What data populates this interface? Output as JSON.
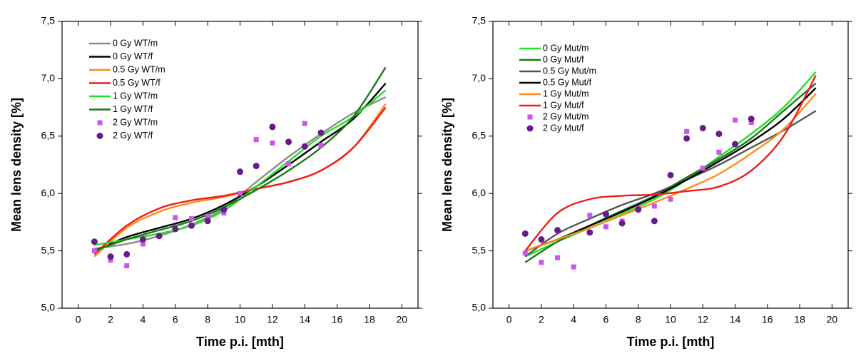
{
  "chart_data": [
    {
      "type": "line",
      "xlabel": "Time p.i. [mth]",
      "ylabel": "Mean lens density [%]",
      "xlim": [
        -1,
        21
      ],
      "xticks": [
        0,
        2,
        4,
        6,
        8,
        10,
        12,
        14,
        16,
        18,
        20
      ],
      "ylim": [
        5,
        7.5
      ],
      "yticks": [
        {
          "value": 5,
          "label": "5,0"
        },
        {
          "value": 5.5,
          "label": "5,5"
        },
        {
          "value": 6,
          "label": "6,0"
        },
        {
          "value": 6.5,
          "label": "6,5"
        },
        {
          "value": 7,
          "label": "7,0"
        },
        {
          "value": 7.5,
          "label": "7,5"
        }
      ],
      "series": [
        {
          "name": "0 Gy WT/m",
          "color": "#8c8c8c",
          "marker": "line",
          "x": [
            1,
            3,
            5,
            7,
            9,
            11,
            13,
            15,
            17,
            19
          ],
          "values": [
            5.52,
            5.56,
            5.63,
            5.73,
            5.87,
            6.1,
            6.32,
            6.52,
            6.7,
            6.84
          ]
        },
        {
          "name": "0 Gy WT/f",
          "color": "#000000",
          "marker": "line",
          "x": [
            1,
            3,
            5,
            7,
            9,
            11,
            13,
            15,
            17,
            19
          ],
          "values": [
            5.5,
            5.62,
            5.7,
            5.78,
            5.9,
            6.06,
            6.25,
            6.45,
            6.65,
            6.96
          ]
        },
        {
          "name": "0.5 Gy WT/m",
          "color": "#ff8c1a",
          "marker": "line",
          "x": [
            1,
            3,
            5,
            7,
            9,
            11,
            13,
            15,
            17,
            19
          ],
          "values": [
            5.45,
            5.7,
            5.84,
            5.92,
            5.97,
            6.04,
            6.1,
            6.2,
            6.4,
            6.78
          ]
        },
        {
          "name": "0.5 Gy WT/f",
          "color": "#ee1c1c",
          "marker": "line",
          "x": [
            1,
            3,
            5,
            7,
            9,
            11,
            13,
            15,
            17,
            19
          ],
          "values": [
            5.47,
            5.72,
            5.87,
            5.94,
            5.98,
            6.04,
            6.1,
            6.2,
            6.4,
            6.75
          ]
        },
        {
          "name": "1 Gy WT/m",
          "color": "#22e022",
          "marker": "line",
          "x": [
            1,
            3,
            5,
            7,
            9,
            11,
            13,
            15,
            17,
            19
          ],
          "values": [
            5.55,
            5.6,
            5.65,
            5.72,
            5.85,
            6.06,
            6.28,
            6.5,
            6.67,
            6.9
          ]
        },
        {
          "name": "1 Gy WT/f",
          "color": "#1a7a1a",
          "marker": "line",
          "x": [
            1,
            3,
            5,
            7,
            9,
            11,
            13,
            15,
            17,
            19
          ],
          "values": [
            5.5,
            5.6,
            5.68,
            5.76,
            5.88,
            6.03,
            6.2,
            6.4,
            6.67,
            7.1
          ]
        },
        {
          "name": "2 Gy WT/m",
          "color": "#cc55ee",
          "marker": "square",
          "x": [
            1,
            2,
            3,
            4,
            5,
            6,
            7,
            8,
            9,
            10,
            11,
            12,
            13,
            14,
            15
          ],
          "values": [
            5.5,
            5.42,
            5.37,
            5.56,
            5.63,
            5.79,
            5.78,
            5.8,
            5.83,
            6.0,
            6.47,
            6.44,
            6.26,
            6.61,
            6.42
          ]
        },
        {
          "name": "2 Gy WT/f",
          "color": "#6a1a8a",
          "marker": "circle",
          "x": [
            1,
            2,
            3,
            4,
            5,
            6,
            7,
            8,
            9,
            10,
            11,
            12,
            13,
            14,
            15
          ],
          "values": [
            5.58,
            5.45,
            5.47,
            5.6,
            5.63,
            5.69,
            5.72,
            5.76,
            5.86,
            6.19,
            6.24,
            6.58,
            6.45,
            6.41,
            6.53
          ]
        }
      ]
    },
    {
      "type": "line",
      "xlabel": "Time p.i. [mth]",
      "ylabel": "Mean lens density [%]",
      "xlim": [
        -1,
        21
      ],
      "xticks": [
        0,
        2,
        4,
        6,
        8,
        10,
        12,
        14,
        16,
        18,
        20
      ],
      "ylim": [
        5,
        7.5
      ],
      "yticks": [
        {
          "value": 5,
          "label": "5,0"
        },
        {
          "value": 5.5,
          "label": "5,5"
        },
        {
          "value": 6,
          "label": "6,0"
        },
        {
          "value": 6.5,
          "label": "6,5"
        },
        {
          "value": 7,
          "label": "7,0"
        },
        {
          "value": 7.5,
          "label": "7,5"
        }
      ],
      "series": [
        {
          "name": "0 Gy Mut/m",
          "color": "#22e022",
          "marker": "line",
          "x": [
            1,
            3,
            5,
            7,
            9,
            11,
            13,
            15,
            17,
            19
          ],
          "values": [
            5.45,
            5.58,
            5.7,
            5.82,
            5.95,
            6.12,
            6.32,
            6.52,
            6.75,
            7.06
          ]
        },
        {
          "name": "0 Gy Mut/f",
          "color": "#1a7a1a",
          "marker": "line",
          "x": [
            1,
            3,
            5,
            7,
            9,
            11,
            13,
            15,
            17,
            19
          ],
          "values": [
            5.4,
            5.58,
            5.72,
            5.85,
            5.98,
            6.14,
            6.3,
            6.48,
            6.72,
            6.96
          ]
        },
        {
          "name": "0.5 Gy Mut/m",
          "color": "#555555",
          "marker": "line",
          "x": [
            1,
            3,
            5,
            7,
            9,
            11,
            13,
            15,
            17,
            19
          ],
          "values": [
            5.45,
            5.65,
            5.78,
            5.9,
            6.0,
            6.12,
            6.25,
            6.4,
            6.55,
            6.72
          ]
        },
        {
          "name": "0.5 Gy Mut/f",
          "color": "#000000",
          "marker": "line",
          "x": [
            1,
            3,
            5,
            7,
            9,
            11,
            13,
            15,
            17,
            19
          ],
          "values": [
            5.5,
            5.6,
            5.72,
            5.84,
            5.97,
            6.12,
            6.28,
            6.45,
            6.65,
            6.92
          ]
        },
        {
          "name": "1 Gy Mut/m",
          "color": "#ff8c1a",
          "marker": "line",
          "x": [
            1,
            3,
            5,
            7,
            9,
            11,
            13,
            15,
            17,
            19
          ],
          "values": [
            5.5,
            5.6,
            5.7,
            5.81,
            5.92,
            6.04,
            6.17,
            6.35,
            6.56,
            6.87
          ]
        },
        {
          "name": "1 Gy Mut/f",
          "color": "#ee1c1c",
          "marker": "line",
          "x": [
            1,
            3,
            5,
            7,
            9,
            11,
            13,
            15,
            17,
            19
          ],
          "values": [
            5.5,
            5.83,
            5.95,
            5.98,
            5.99,
            6.02,
            6.06,
            6.2,
            6.5,
            7.03
          ]
        },
        {
          "name": "2 Gy Mut/m",
          "color": "#cc55ee",
          "marker": "square",
          "x": [
            1,
            2,
            3,
            4,
            5,
            6,
            7,
            8,
            9,
            10,
            11,
            12,
            13,
            14,
            15
          ],
          "values": [
            5.48,
            5.4,
            5.44,
            5.36,
            5.81,
            5.71,
            5.76,
            5.87,
            5.89,
            5.95,
            6.54,
            6.22,
            6.36,
            6.64,
            6.62
          ]
        },
        {
          "name": "2 Gy Mut/f",
          "color": "#6a1a8a",
          "marker": "circle",
          "x": [
            1,
            2,
            3,
            4,
            5,
            6,
            7,
            8,
            9,
            10,
            11,
            12,
            13,
            14,
            15
          ],
          "values": [
            5.65,
            5.6,
            5.68,
            null,
            5.66,
            5.82,
            5.74,
            5.86,
            5.76,
            6.16,
            6.48,
            6.57,
            6.52,
            6.43,
            6.65
          ]
        }
      ]
    }
  ]
}
